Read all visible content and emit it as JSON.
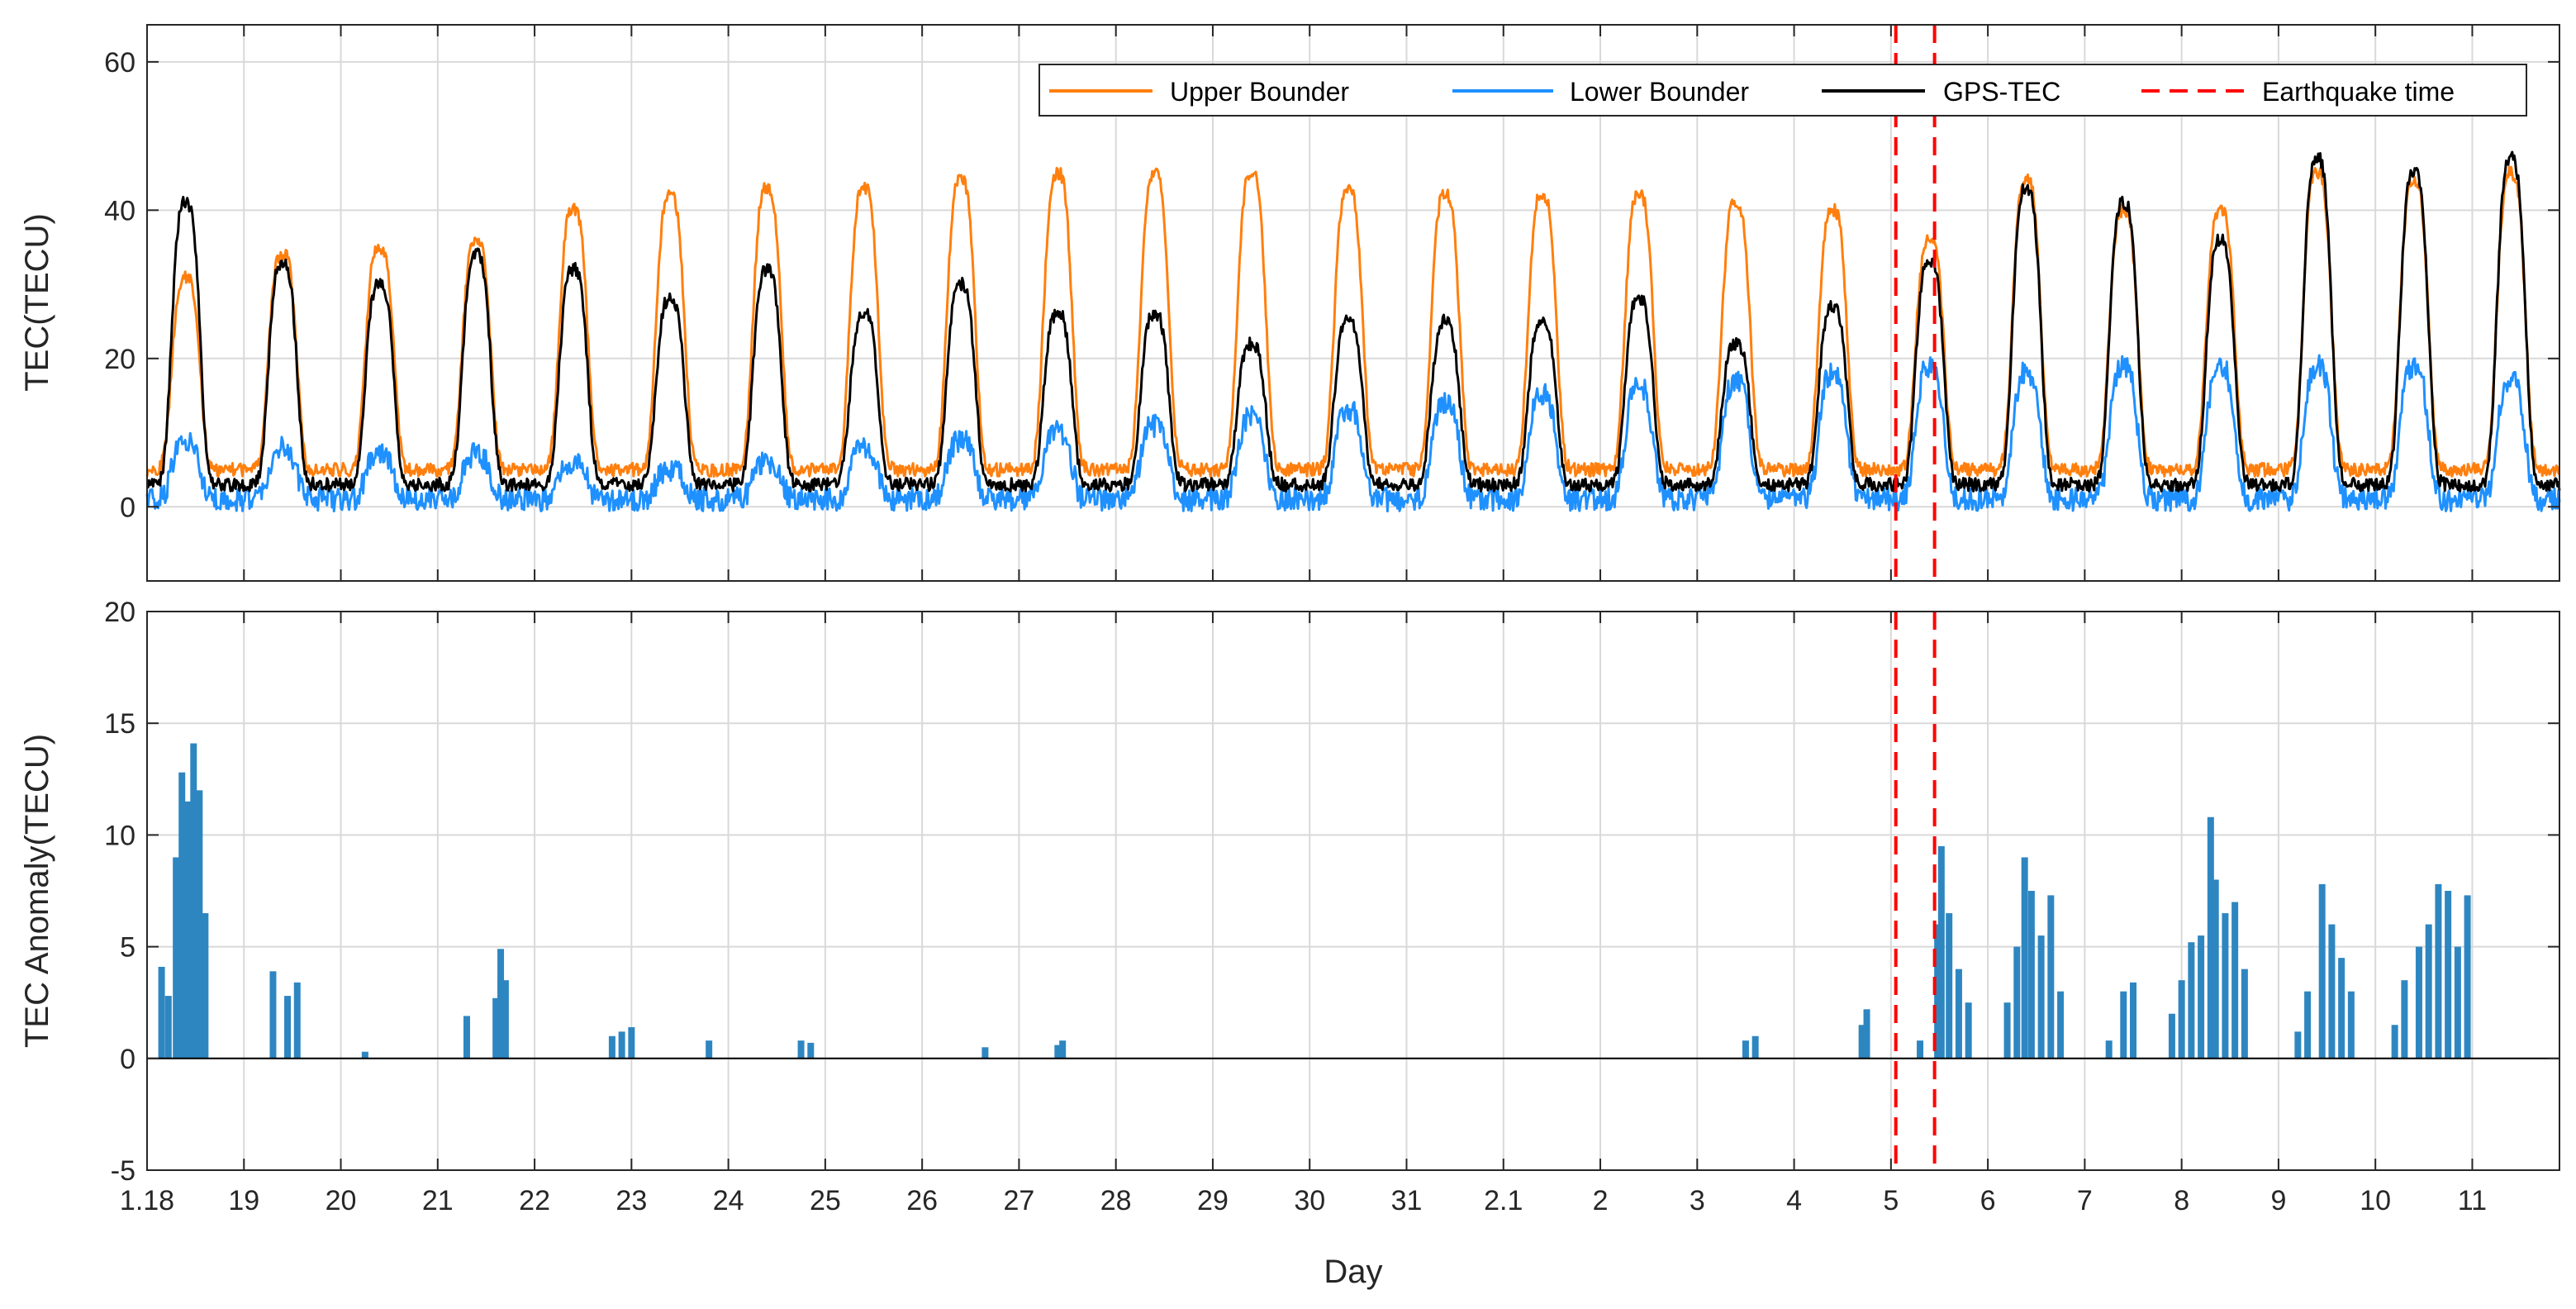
{
  "chart_data": [
    {
      "type": "line",
      "panel": "top",
      "title": "",
      "xlabel": "",
      "ylabel": "TEC(TECU)",
      "ylim": [
        -10,
        65
      ],
      "yticks": [
        0,
        20,
        40,
        60
      ],
      "xlim": [
        0,
        24.9
      ],
      "grid": true,
      "legend": {
        "placement": "top-right",
        "entries": [
          "Upper Bounder",
          "Lower Bounder",
          "GPS-TEC",
          "Earthquake time"
        ]
      },
      "series": [
        {
          "name": "Upper Bounder",
          "color": "#ff7f0e",
          "x": [
            0.4,
            1.4,
            2.4,
            3.4,
            4.4,
            5.4,
            6.4,
            7.4,
            8.4,
            9.4,
            10.4,
            11.4,
            12.4,
            13.4,
            14.4,
            15.4,
            16.4,
            17.4,
            18.4,
            19.4,
            20.4,
            21.4,
            22.4,
            23.4,
            24.4
          ],
          "peaks": [
            31,
            34,
            35,
            36,
            40,
            42,
            43,
            43,
            44,
            45,
            45,
            45,
            43,
            42,
            42,
            42,
            41,
            40,
            36,
            44,
            40,
            40,
            45,
            44,
            45
          ],
          "base": 5
        },
        {
          "name": "Lower Bounder",
          "color": "#1e90ff",
          "x": [
            0.4,
            1.4,
            2.4,
            3.4,
            4.4,
            5.4,
            6.4,
            7.4,
            8.4,
            9.4,
            10.4,
            11.4,
            12.4,
            13.4,
            14.4,
            15.4,
            16.4,
            17.4,
            18.4,
            19.4,
            20.4,
            21.4,
            22.4,
            23.4,
            24.4
          ],
          "peaks": [
            9,
            8,
            7,
            7,
            6,
            5,
            6,
            8,
            9,
            10,
            11,
            12,
            13,
            14,
            15,
            16,
            17,
            18,
            19,
            18,
            19,
            19,
            19,
            19,
            17
          ],
          "base": 1
        },
        {
          "name": "GPS-TEC",
          "color": "#000000",
          "x": [
            0.4,
            1.4,
            2.4,
            3.4,
            4.4,
            5.4,
            6.4,
            7.4,
            8.4,
            9.4,
            10.4,
            11.4,
            12.4,
            13.4,
            14.4,
            15.4,
            16.4,
            17.4,
            18.4,
            19.4,
            20.4,
            21.4,
            22.4,
            23.4,
            24.4
          ],
          "peaks": [
            41,
            33,
            30,
            34,
            32,
            28,
            32,
            26,
            30,
            26,
            26,
            22,
            25,
            25,
            25,
            28,
            22,
            27,
            33,
            43,
            41,
            36,
            47,
            45,
            47
          ],
          "base": 3
        }
      ],
      "earthquake_times": [
        18.05,
        18.45
      ]
    },
    {
      "type": "bar",
      "panel": "bottom",
      "title": "",
      "xlabel": "Day",
      "ylabel": "TEC Anomaly(TECU)",
      "ylim": [
        -5,
        20
      ],
      "yticks": [
        -5,
        0,
        5,
        10,
        15,
        20
      ],
      "xlim": [
        0,
        24.9
      ],
      "grid": true,
      "color": "#2e86c1",
      "anomaly_spikes": [
        {
          "x": 0.15,
          "v": 4.1
        },
        {
          "x": 0.22,
          "v": 2.8
        },
        {
          "x": 0.3,
          "v": 9.0
        },
        {
          "x": 0.36,
          "v": 12.8
        },
        {
          "x": 0.42,
          "v": 11.5
        },
        {
          "x": 0.48,
          "v": 14.1
        },
        {
          "x": 0.54,
          "v": 12.0
        },
        {
          "x": 0.6,
          "v": 6.5
        },
        {
          "x": 1.3,
          "v": 3.9
        },
        {
          "x": 1.45,
          "v": 2.8
        },
        {
          "x": 1.55,
          "v": 3.4
        },
        {
          "x": 2.25,
          "v": 0.3
        },
        {
          "x": 3.3,
          "v": 1.9
        },
        {
          "x": 3.6,
          "v": 2.7
        },
        {
          "x": 3.65,
          "v": 4.9
        },
        {
          "x": 3.7,
          "v": 3.5
        },
        {
          "x": 4.8,
          "v": 1.0
        },
        {
          "x": 4.9,
          "v": 1.2
        },
        {
          "x": 5.0,
          "v": 1.4
        },
        {
          "x": 5.8,
          "v": 0.8
        },
        {
          "x": 6.75,
          "v": 0.8
        },
        {
          "x": 6.85,
          "v": 0.7
        },
        {
          "x": 8.65,
          "v": 0.5
        },
        {
          "x": 9.4,
          "v": 0.6
        },
        {
          "x": 9.45,
          "v": 0.8
        },
        {
          "x": 16.5,
          "v": 0.8
        },
        {
          "x": 16.6,
          "v": 1.0
        },
        {
          "x": 17.7,
          "v": 1.5
        },
        {
          "x": 17.75,
          "v": 2.2
        },
        {
          "x": 18.3,
          "v": 0.8
        },
        {
          "x": 18.48,
          "v": 6.0
        },
        {
          "x": 18.52,
          "v": 9.5
        },
        {
          "x": 18.6,
          "v": 6.5
        },
        {
          "x": 18.7,
          "v": 4.0
        },
        {
          "x": 18.8,
          "v": 2.5
        },
        {
          "x": 19.2,
          "v": 2.5
        },
        {
          "x": 19.3,
          "v": 5.0
        },
        {
          "x": 19.38,
          "v": 9.0
        },
        {
          "x": 19.45,
          "v": 7.5
        },
        {
          "x": 19.55,
          "v": 5.5
        },
        {
          "x": 19.65,
          "v": 7.3
        },
        {
          "x": 19.75,
          "v": 3.0
        },
        {
          "x": 20.25,
          "v": 0.8
        },
        {
          "x": 20.4,
          "v": 3.0
        },
        {
          "x": 20.5,
          "v": 3.4
        },
        {
          "x": 20.9,
          "v": 2.0
        },
        {
          "x": 21.0,
          "v": 3.5
        },
        {
          "x": 21.1,
          "v": 5.2
        },
        {
          "x": 21.2,
          "v": 5.5
        },
        {
          "x": 21.3,
          "v": 10.8
        },
        {
          "x": 21.35,
          "v": 8.0
        },
        {
          "x": 21.45,
          "v": 6.5
        },
        {
          "x": 21.55,
          "v": 7.0
        },
        {
          "x": 21.65,
          "v": 4.0
        },
        {
          "x": 22.2,
          "v": 1.2
        },
        {
          "x": 22.3,
          "v": 3.0
        },
        {
          "x": 22.45,
          "v": 7.8
        },
        {
          "x": 22.55,
          "v": 6.0
        },
        {
          "x": 22.65,
          "v": 4.5
        },
        {
          "x": 22.75,
          "v": 3.0
        },
        {
          "x": 23.2,
          "v": 1.5
        },
        {
          "x": 23.3,
          "v": 3.5
        },
        {
          "x": 23.45,
          "v": 5.0
        },
        {
          "x": 23.55,
          "v": 6.0
        },
        {
          "x": 23.65,
          "v": 7.8
        },
        {
          "x": 23.75,
          "v": 7.5
        },
        {
          "x": 23.85,
          "v": 5.0
        },
        {
          "x": 23.95,
          "v": 7.3
        }
      ],
      "earthquake_times": [
        18.05,
        18.45
      ]
    }
  ],
  "x_axis": {
    "label": "Day",
    "ticks": [
      {
        "pos": 0,
        "label": "1.18"
      },
      {
        "pos": 1,
        "label": "19"
      },
      {
        "pos": 2,
        "label": "20"
      },
      {
        "pos": 3,
        "label": "21"
      },
      {
        "pos": 4,
        "label": "22"
      },
      {
        "pos": 5,
        "label": "23"
      },
      {
        "pos": 6,
        "label": "24"
      },
      {
        "pos": 7,
        "label": "25"
      },
      {
        "pos": 8,
        "label": "26"
      },
      {
        "pos": 9,
        "label": "27"
      },
      {
        "pos": 10,
        "label": "28"
      },
      {
        "pos": 11,
        "label": "29"
      },
      {
        "pos": 12,
        "label": "30"
      },
      {
        "pos": 13,
        "label": "31"
      },
      {
        "pos": 14,
        "label": "2.1"
      },
      {
        "pos": 15,
        "label": "2"
      },
      {
        "pos": 16,
        "label": "3"
      },
      {
        "pos": 17,
        "label": "4"
      },
      {
        "pos": 18,
        "label": "5"
      },
      {
        "pos": 19,
        "label": "6"
      },
      {
        "pos": 20,
        "label": "7"
      },
      {
        "pos": 21,
        "label": "8"
      },
      {
        "pos": 22,
        "label": "9"
      },
      {
        "pos": 23,
        "label": "10"
      },
      {
        "pos": 24,
        "label": "11"
      }
    ]
  },
  "colors": {
    "upper": "#ff7f0e",
    "lower": "#1e90ff",
    "gps": "#000000",
    "quake": "#ff0000",
    "anomaly": "#2e86c1",
    "grid": "#d9d9d9"
  }
}
